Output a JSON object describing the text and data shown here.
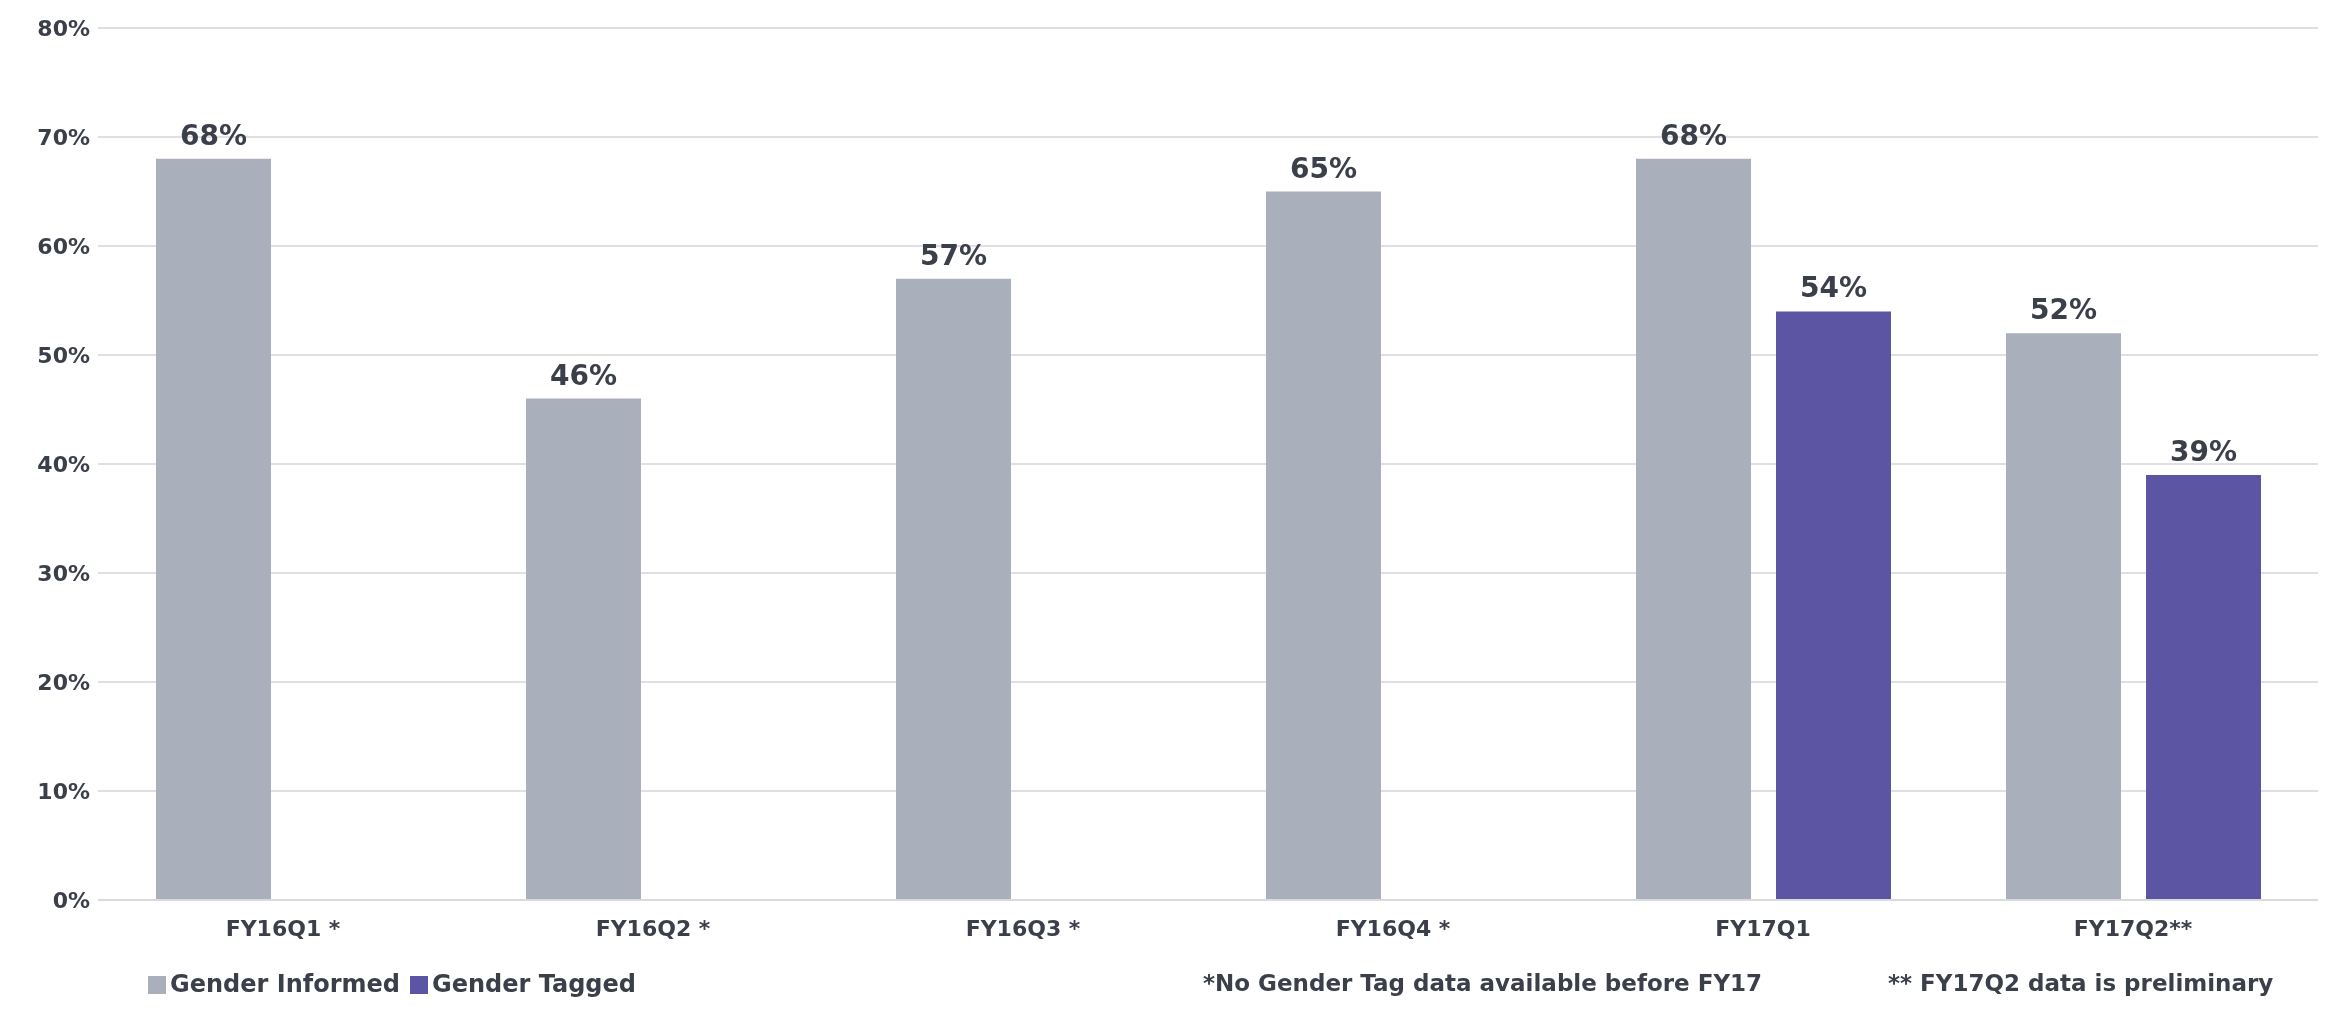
{
  "chart_data": {
    "type": "bar",
    "categories": [
      "FY16Q1 *",
      "FY16Q2 *",
      "FY16Q3 *",
      "FY16Q4 *",
      "FY17Q1",
      "FY17Q2**"
    ],
    "series": [
      {
        "name": "Gender Informed",
        "color": "#a9b0bc",
        "values": [
          68,
          46,
          57,
          65,
          68,
          52
        ],
        "value_labels": [
          "68%",
          "46%",
          "57%",
          "65%",
          "68%",
          "52%"
        ]
      },
      {
        "name": "Gender Tagged",
        "color": "#5b55a3",
        "values": [
          null,
          null,
          null,
          null,
          54,
          39
        ],
        "value_labels": [
          null,
          null,
          null,
          null,
          "54%",
          "39%"
        ]
      }
    ],
    "ylim": [
      0,
      80
    ],
    "yticks": [
      {
        "value": 0,
        "label": "0%"
      },
      {
        "value": 10,
        "label": "10%"
      },
      {
        "value": 20,
        "label": "20%"
      },
      {
        "value": 30,
        "label": "30%"
      },
      {
        "value": 40,
        "label": "40%"
      },
      {
        "value": 50,
        "label": "50%"
      },
      {
        "value": 60,
        "label": "60%"
      },
      {
        "value": 70,
        "label": "70%"
      },
      {
        "value": 80,
        "label": "80%"
      }
    ],
    "grid": "y",
    "legend": "bottom left",
    "annotations": [
      "*No Gender Tag data available before FY17",
      "** FY17Q2 data is preliminary"
    ]
  }
}
